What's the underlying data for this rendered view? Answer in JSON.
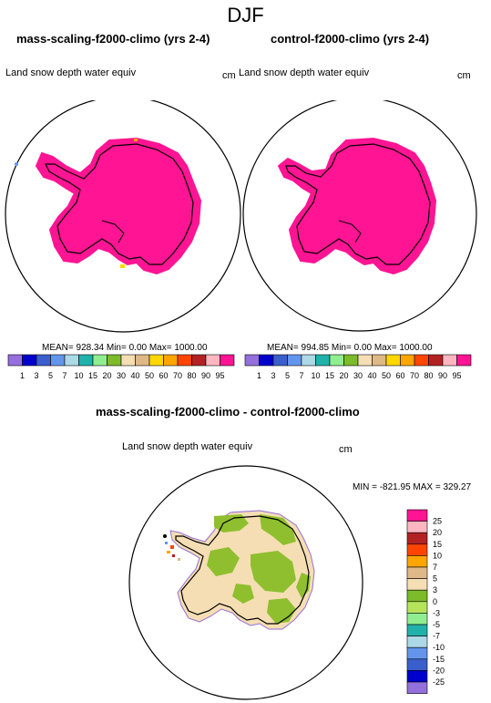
{
  "title": "DJF",
  "panels": [
    {
      "title": "mass-scaling-f2000-climo (yrs 2-4)",
      "variable": "Land snow depth water equiv",
      "units": "cm",
      "stats": "MEAN= 928.34  Min=    0.00  Max= 1000.00"
    },
    {
      "title": "control-f2000-climo (yrs 2-4)",
      "variable": "Land snow depth water equiv",
      "units": "cm",
      "stats": "MEAN= 994.85  Min=    0.00  Max= 1000.00"
    }
  ],
  "top_colorbar": {
    "labels": [
      "1",
      "3",
      "5",
      "7",
      "10",
      "15",
      "20",
      "30",
      "40",
      "50",
      "60",
      "70",
      "80",
      "90",
      "95"
    ],
    "colors": [
      "#9370db",
      "#0000cd",
      "#3a5fcd",
      "#6495ed",
      "#add8e6",
      "#20b2aa",
      "#90ee90",
      "#7cbb2a",
      "#f5deb3",
      "#deb887",
      "#ffd700",
      "#ffa500",
      "#ff4500",
      "#b22222",
      "#ffb6c1",
      "#ff1493"
    ]
  },
  "diff": {
    "title": "mass-scaling-f2000-climo - control-f2000-climo",
    "variable": "Land snow depth water equiv",
    "units": "cm",
    "stats": "MIN = -821.95  MAX = 329.27",
    "labels": [
      "25",
      "20",
      "15",
      "10",
      "7",
      "5",
      "3",
      "0",
      "-3",
      "-5",
      "-7",
      "-10",
      "-15",
      "-20",
      "-25"
    ],
    "colors": [
      "#ff1493",
      "#ffb6c1",
      "#b22222",
      "#ff4500",
      "#ffa500",
      "#deb887",
      "#f5deb3",
      "#7cbb2a",
      "#b5e35a",
      "#90ee90",
      "#20b2aa",
      "#add8e6",
      "#6495ed",
      "#3a5fcd",
      "#0000cd",
      "#9370db"
    ]
  },
  "colors": {
    "snow_full": "#ff1493",
    "diff_land": "#f5deb3",
    "diff_green": "#8fbf2e",
    "coast": "#000000"
  }
}
